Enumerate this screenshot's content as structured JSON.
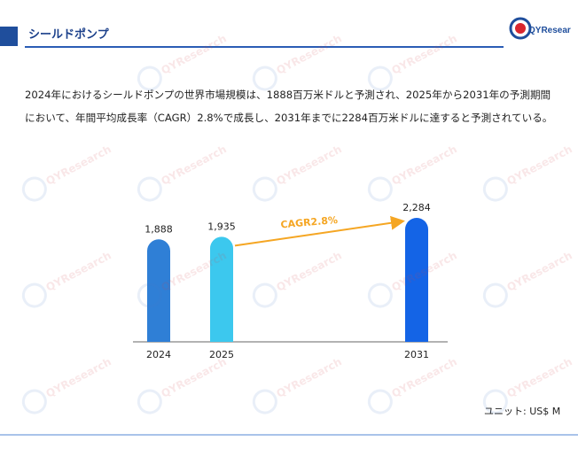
{
  "header": {
    "title": "シールドポンプ"
  },
  "logo": {
    "text": "QYResearch",
    "color_primary": "#1f4e9c",
    "color_accent": "#d8262e"
  },
  "description": "2024年におけるシールドポンプの世界市場規模は、1888百万米ドルと予測され、2025年から2031年の予測期間において、年間平均成長率（CAGR）2.8%で成長し、2031年までに2284百万米ドルに達すると予測されている。",
  "unit_label": "ユニット: US$ M",
  "colors": {
    "header": "#1f4e9c",
    "bar_2024": "#2f7fd6",
    "bar_2025": "#3cc8ee",
    "bar_2031": "#1464e6",
    "cagr": "#f5a623",
    "footer_line": "#a9c3ea"
  },
  "chart_data": {
    "type": "bar",
    "categories": [
      "2024",
      "2025",
      "2031"
    ],
    "values": [
      1888,
      1935,
      2284
    ],
    "value_labels": [
      "1,888",
      "1,935",
      "2,284"
    ],
    "annotation": {
      "text": "CAGR2.8%",
      "from": "2025",
      "to": "2031"
    },
    "title": "",
    "xlabel": "",
    "ylabel": "",
    "ylim": [
      0,
      2284
    ]
  }
}
